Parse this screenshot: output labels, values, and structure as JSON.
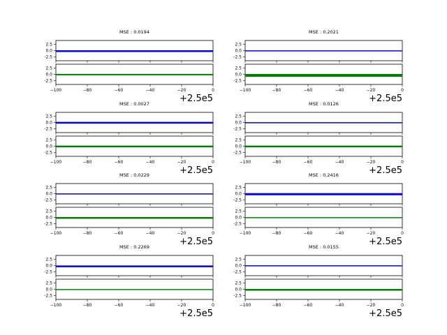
{
  "colors": {
    "top_series": "#0000ff",
    "bottom_series": "#008000",
    "axes": "#000000",
    "background": "#ffffff"
  },
  "chart_data": {
    "type": "line",
    "grid": false,
    "layout": "4 rows x 2 columns of panels, each panel has two stacked line axes sharing the x-axis",
    "x_range": [
      -100,
      0
    ],
    "x_offset_label": "+2.5e5",
    "x_ticks": [
      -100,
      -80,
      -60,
      -40,
      -20,
      0
    ],
    "y_ticks": [
      -2.5,
      0.0,
      2.5
    ],
    "ylim": [
      -4,
      4
    ],
    "panels": [
      {
        "title": "MSE : 0.0194",
        "top": {
          "y": -0.2,
          "thickness": 2.5
        },
        "bottom": {
          "y": -0.1,
          "thickness": 2.0
        }
      },
      {
        "title": "MSE : 0.2021",
        "top": {
          "y": -0.1,
          "thickness": 1.5
        },
        "bottom": {
          "y": -0.4,
          "thickness": 4.0
        }
      },
      {
        "title": "MSE : 0.0027",
        "top": {
          "y": -0.1,
          "thickness": 2.5
        },
        "bottom": {
          "y": -0.1,
          "thickness": 2.5
        }
      },
      {
        "title": "MSE : 0.0126",
        "top": {
          "y": -0.1,
          "thickness": 1.5
        },
        "bottom": {
          "y": -0.1,
          "thickness": 2.5
        }
      },
      {
        "title": "MSE : 0.0229",
        "top": {
          "y": -0.1,
          "thickness": 1.5
        },
        "bottom": {
          "y": -0.2,
          "thickness": 2.5
        }
      },
      {
        "title": "MSE : 0.2416",
        "top": {
          "y": -0.2,
          "thickness": 3.0
        },
        "bottom": {
          "y": -0.1,
          "thickness": 1.5
        }
      },
      {
        "title": "MSE : 0.2269",
        "top": {
          "y": -0.3,
          "thickness": 2.5
        },
        "bottom": {
          "y": -0.1,
          "thickness": 1.5
        }
      },
      {
        "title": "MSE : 0.0155",
        "top": {
          "y": -0.1,
          "thickness": 1.5
        },
        "bottom": {
          "y": -0.2,
          "thickness": 2.5
        }
      }
    ]
  }
}
